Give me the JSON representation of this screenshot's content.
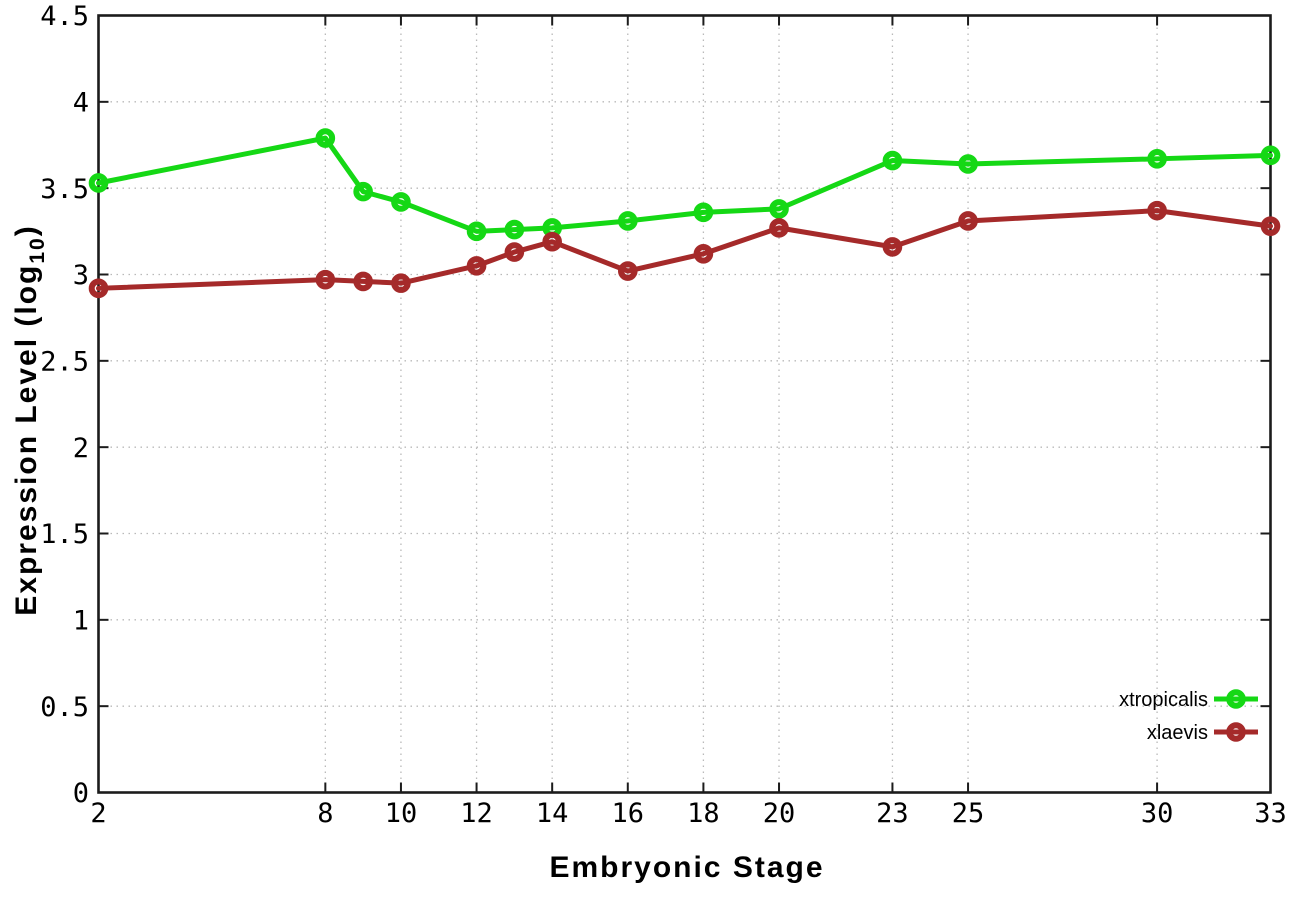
{
  "page": {
    "background": "#ffffff"
  },
  "chart_data": {
    "type": "line",
    "title": "",
    "xlabel": "Embryonic Stage",
    "ylabel": "Expression Level (log10)",
    "ylabel_parts": {
      "pre": "Expression Level (log",
      "sub": "10",
      "post": ")"
    },
    "xlim": [
      2,
      33
    ],
    "ylim": [
      0,
      4.5
    ],
    "x_tick_values": [
      2,
      8,
      10,
      12,
      14,
      16,
      18,
      20,
      23,
      25,
      30,
      33
    ],
    "x_tick_labels": [
      "2",
      "8",
      "10",
      "12",
      "14",
      "16",
      "18",
      "20",
      "23",
      "25",
      "30",
      "33"
    ],
    "y_tick_values": [
      0,
      0.5,
      1,
      1.5,
      2,
      2.5,
      3,
      3.5,
      4,
      4.5
    ],
    "y_tick_labels": [
      "0",
      "0.5",
      "1",
      "1.5",
      "2",
      "2.5",
      "3",
      "3.5",
      "4",
      "4.5"
    ],
    "grid": true,
    "legend_position": "bottom-right",
    "x": [
      2,
      8,
      9,
      10,
      12,
      13,
      14,
      16,
      18,
      20,
      23,
      25,
      30,
      33
    ],
    "series": [
      {
        "name": "xtropicalis",
        "color": "#15d815",
        "marker": "open-circle",
        "values": [
          3.53,
          3.79,
          3.48,
          3.42,
          3.25,
          3.26,
          3.27,
          3.31,
          3.36,
          3.38,
          3.66,
          3.64,
          3.67,
          3.69
        ]
      },
      {
        "name": "xlaevis",
        "color": "#a52a2a",
        "marker": "open-circle",
        "values": [
          2.92,
          2.97,
          2.96,
          2.95,
          3.05,
          3.13,
          3.19,
          3.02,
          3.12,
          3.27,
          3.16,
          3.31,
          3.37,
          3.28
        ]
      }
    ],
    "colors": {
      "grid": "#b9b9b9",
      "axis": "#1c1c1c",
      "text": "#000000",
      "background": "#ffffff"
    }
  }
}
